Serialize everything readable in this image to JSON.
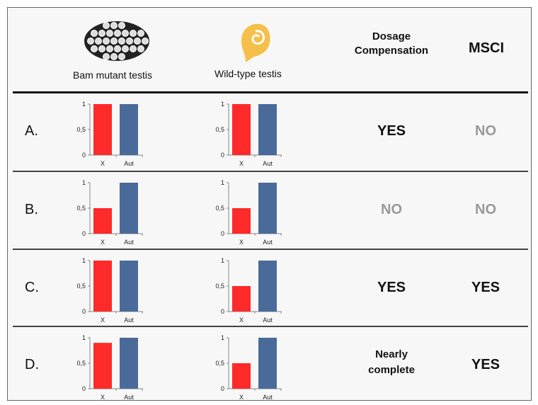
{
  "header": {
    "bam_label": "Bam mutant testis",
    "wt_label": "Wild-type testis",
    "dosage_label_1": "Dosage",
    "dosage_label_2": "Compensation",
    "msci_label": "MSCI",
    "bam_icon": "cyst-cluster-icon",
    "wt_icon": "coiled-testis-icon"
  },
  "colors": {
    "x_bar": "#ff2a2a",
    "aut_bar": "#4a6b9a",
    "yes": "#111111",
    "no": "#999999",
    "wt_icon": "#f5c04a"
  },
  "rows": [
    {
      "label": "A.",
      "dosage": "YES",
      "dosage_2": "",
      "msci": "NO"
    },
    {
      "label": "B.",
      "dosage": "NO",
      "dosage_2": "",
      "msci": "NO"
    },
    {
      "label": "C.",
      "dosage": "YES",
      "dosage_2": "",
      "msci": "YES"
    },
    {
      "label": "D.",
      "dosage": "Nearly",
      "dosage_2": "complete",
      "msci": "YES"
    }
  ],
  "chart_data": [
    {
      "type": "bar",
      "row": "A",
      "panel": "Bam mutant testis",
      "categories": [
        "X",
        "Aut"
      ],
      "values": [
        1,
        1
      ],
      "ylim": [
        0,
        1
      ],
      "yticks": [
        "0",
        "0,5",
        "1"
      ]
    },
    {
      "type": "bar",
      "row": "A",
      "panel": "Wild-type testis",
      "categories": [
        "X",
        "Aut"
      ],
      "values": [
        1,
        1
      ],
      "ylim": [
        0,
        1
      ],
      "yticks": [
        "0",
        "0,5",
        "1"
      ]
    },
    {
      "type": "bar",
      "row": "B",
      "panel": "Bam mutant testis",
      "categories": [
        "X",
        "Aut"
      ],
      "values": [
        0.5,
        1
      ],
      "ylim": [
        0,
        1
      ],
      "yticks": [
        "0",
        "0,5",
        "1"
      ]
    },
    {
      "type": "bar",
      "row": "B",
      "panel": "Wild-type testis",
      "categories": [
        "X",
        "Aut"
      ],
      "values": [
        0.5,
        1
      ],
      "ylim": [
        0,
        1
      ],
      "yticks": [
        "0",
        "0,5",
        "1"
      ]
    },
    {
      "type": "bar",
      "row": "C",
      "panel": "Bam mutant testis",
      "categories": [
        "X",
        "Aut"
      ],
      "values": [
        1,
        1
      ],
      "ylim": [
        0,
        1
      ],
      "yticks": [
        "0",
        "0,5",
        "1"
      ]
    },
    {
      "type": "bar",
      "row": "C",
      "panel": "Wild-type testis",
      "categories": [
        "X",
        "Aut"
      ],
      "values": [
        0.5,
        1
      ],
      "ylim": [
        0,
        1
      ],
      "yticks": [
        "0",
        "0,5",
        "1"
      ]
    },
    {
      "type": "bar",
      "row": "D",
      "panel": "Bam mutant testis",
      "categories": [
        "X",
        "Aut"
      ],
      "values": [
        0.9,
        1
      ],
      "ylim": [
        0,
        1
      ],
      "yticks": [
        "0",
        "0,5",
        "1"
      ]
    },
    {
      "type": "bar",
      "row": "D",
      "panel": "Wild-type testis",
      "categories": [
        "X",
        "Aut"
      ],
      "values": [
        0.5,
        1
      ],
      "ylim": [
        0,
        1
      ],
      "yticks": [
        "0",
        "0,5",
        "1"
      ]
    }
  ]
}
